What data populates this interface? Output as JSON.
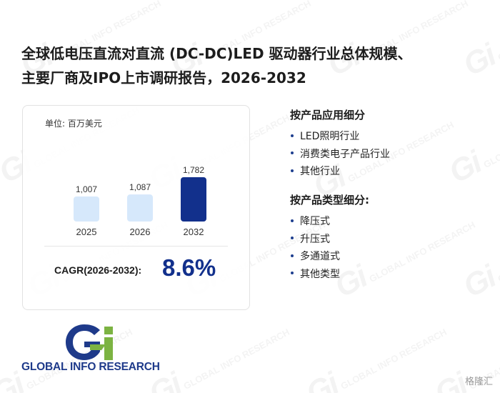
{
  "title": {
    "line1": "全球低电压直流对直流 (DC-DC)LED 驱动器行业总体规模、",
    "line2": "主要厂商及IPO上市调研报告，2026-2032"
  },
  "chart_data": {
    "type": "bar",
    "unit_label": "单位: 百万美元",
    "categories": [
      "2025",
      "2026",
      "2032"
    ],
    "values": [
      1007,
      1087,
      1782
    ],
    "value_labels": [
      "1,007",
      "1,087",
      "1,782"
    ],
    "highlight_index": 2,
    "colors": {
      "normal": "#d6e8fb",
      "highlight": "#12308c"
    },
    "cagr_label": "CAGR(2026-2032):",
    "cagr_value": "8.6%"
  },
  "segments": {
    "application": {
      "title": "按产品应用细分",
      "items": [
        "LED照明行业",
        "消费类电子产品行业",
        "其他行业"
      ]
    },
    "type": {
      "title": "按产品类型细分:",
      "items": [
        "降压式",
        "升压式",
        "多通道式",
        "其他类型"
      ]
    }
  },
  "logo": {
    "text": "GLOBAL INFO RESEARCH",
    "mark": "Gi",
    "colors": {
      "navy": "#1e3a8a",
      "green": "#7cb342"
    }
  },
  "watermark": {
    "mark": "Gi",
    "text": "GLOBAL INFO RESEARCH"
  },
  "corner_mark": "格隆汇"
}
